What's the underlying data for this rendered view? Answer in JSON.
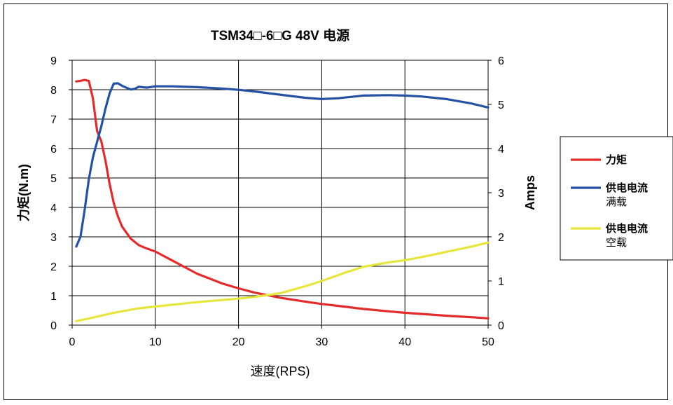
{
  "chart_data": {
    "type": "line",
    "title": "TSM34□-6□G 48V 电源",
    "xlabel": "速度(RPS)",
    "ylabel_left": "力矩(N.m)",
    "ylabel_right": "Amps",
    "xlim": [
      0,
      50
    ],
    "ylim_left": [
      0,
      9
    ],
    "ylim_right": [
      0,
      6
    ],
    "x_ticks": [
      "0",
      "10",
      "20",
      "30",
      "40",
      "50"
    ],
    "y_left_ticks": [
      "0",
      "1",
      "2",
      "3",
      "4",
      "5",
      "6",
      "7",
      "8",
      "9"
    ],
    "y_right_ticks": [
      "0",
      "1",
      "2",
      "3",
      "4",
      "5",
      "6"
    ],
    "grid": true,
    "legend_position": "right",
    "series": [
      {
        "name": "力矩",
        "sublabel": "",
        "axis": "left",
        "color": "#e32b2b",
        "x": [
          0.5,
          1.0,
          1.5,
          2.0,
          2.5,
          3.0,
          3.5,
          4.0,
          4.5,
          5.0,
          5.5,
          6.0,
          7.0,
          8.0,
          9.0,
          10.0,
          12.0,
          15.0,
          18.0,
          20.0,
          22.0,
          25.0,
          28.0,
          30.0,
          33.0,
          35.0,
          38.0,
          40.0,
          43.0,
          45.0,
          48.0,
          50.0
        ],
        "values": [
          8.28,
          8.3,
          8.33,
          8.3,
          7.7,
          6.6,
          6.25,
          5.6,
          4.8,
          4.15,
          3.7,
          3.35,
          2.95,
          2.72,
          2.6,
          2.5,
          2.2,
          1.75,
          1.42,
          1.25,
          1.1,
          0.93,
          0.8,
          0.72,
          0.62,
          0.55,
          0.47,
          0.42,
          0.36,
          0.32,
          0.27,
          0.23
        ]
      },
      {
        "name": "供电电流",
        "sublabel": "满载",
        "axis": "right",
        "color": "#2451a4",
        "x": [
          0.5,
          1.0,
          1.5,
          2.0,
          2.5,
          3.0,
          3.5,
          4.0,
          4.5,
          5.0,
          5.5,
          6.0,
          7.0,
          7.5,
          8.0,
          9.0,
          10.0,
          12.0,
          15.0,
          18.0,
          20.0,
          22.0,
          25.0,
          28.0,
          30.0,
          32.0,
          35.0,
          38.0,
          40.0,
          42.0,
          45.0,
          48.0,
          50.0
        ],
        "values": [
          1.78,
          2.0,
          2.6,
          3.3,
          3.8,
          4.15,
          4.5,
          4.9,
          5.25,
          5.47,
          5.48,
          5.42,
          5.34,
          5.35,
          5.4,
          5.38,
          5.41,
          5.41,
          5.39,
          5.36,
          5.33,
          5.29,
          5.22,
          5.15,
          5.12,
          5.14,
          5.2,
          5.21,
          5.2,
          5.18,
          5.12,
          5.02,
          4.93
        ]
      },
      {
        "name": "供电电流",
        "sublabel": "空载",
        "axis": "right",
        "color": "#e6e63c",
        "x": [
          0.5,
          2.0,
          5.0,
          8.0,
          10.0,
          15.0,
          20.0,
          22.0,
          25.0,
          28.0,
          30.0,
          33.0,
          35.0,
          38.0,
          40.0,
          43.0,
          45.0,
          48.0,
          50.0
        ],
        "values": [
          0.09,
          0.15,
          0.28,
          0.38,
          0.42,
          0.52,
          0.6,
          0.64,
          0.72,
          0.88,
          1.0,
          1.2,
          1.32,
          1.42,
          1.47,
          1.58,
          1.66,
          1.78,
          1.87
        ]
      }
    ]
  }
}
